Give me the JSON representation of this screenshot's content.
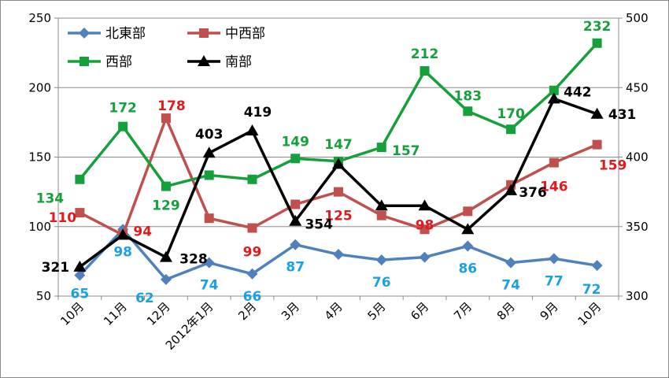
{
  "chart_data": {
    "type": "line",
    "categories": [
      "10月",
      "11月",
      "12月",
      "2012年1月",
      "2月",
      "3月",
      "4月",
      "5月",
      "6月",
      "7月",
      "8月",
      "9月",
      "10月"
    ],
    "y_left": {
      "range": [
        50,
        250
      ],
      "ticks": [
        "50",
        "100",
        "150",
        "200",
        "250"
      ]
    },
    "y_right": {
      "range": [
        300,
        500
      ],
      "ticks": [
        "300",
        "350",
        "400",
        "450",
        "500"
      ]
    },
    "grid": "horizontal",
    "legend_position": "top-left",
    "series": [
      {
        "name": "北東部",
        "axis": "left",
        "color": "#4f81bd",
        "label_color": "#1ba1e2",
        "marker": "diamond",
        "values": [
          65,
          98,
          62,
          74,
          66,
          87,
          80,
          76,
          78,
          86,
          74,
          77,
          72
        ],
        "labels": [
          "65",
          "98",
          "62",
          "74",
          "66",
          "87",
          "",
          "76",
          "",
          "86",
          "74",
          "77",
          "72"
        ]
      },
      {
        "name": "中西部",
        "axis": "left",
        "color": "#c0504d",
        "label_color": "#e31a1c",
        "marker": "square",
        "values": [
          110,
          94,
          178,
          106,
          99,
          116,
          125,
          108,
          98,
          111,
          130,
          146,
          159
        ],
        "labels": [
          "110",
          "94",
          "178",
          "",
          "99",
          "",
          "125",
          "",
          "98",
          "",
          "",
          "146",
          "159"
        ]
      },
      {
        "name": "西部",
        "axis": "left",
        "color": "#16a03b",
        "label_color": "#16a03b",
        "marker": "square",
        "values": [
          134,
          172,
          129,
          137,
          134,
          149,
          147,
          157,
          212,
          183,
          170,
          198,
          232
        ],
        "labels": [
          "134",
          "172",
          "129",
          "",
          "",
          "149",
          "147",
          "157",
          "212",
          "183",
          "170",
          "",
          "232"
        ]
      },
      {
        "name": "南部",
        "axis": "right",
        "color": "#000000",
        "label_color": "#000000",
        "marker": "triangle",
        "values": [
          321,
          344,
          328,
          403,
          419,
          354,
          395,
          365,
          365,
          348,
          376,
          442,
          431
        ],
        "labels": [
          "321",
          "",
          "328",
          "403",
          "419",
          "354",
          "",
          "",
          "",
          "",
          "376",
          "442",
          "431"
        ]
      }
    ]
  }
}
